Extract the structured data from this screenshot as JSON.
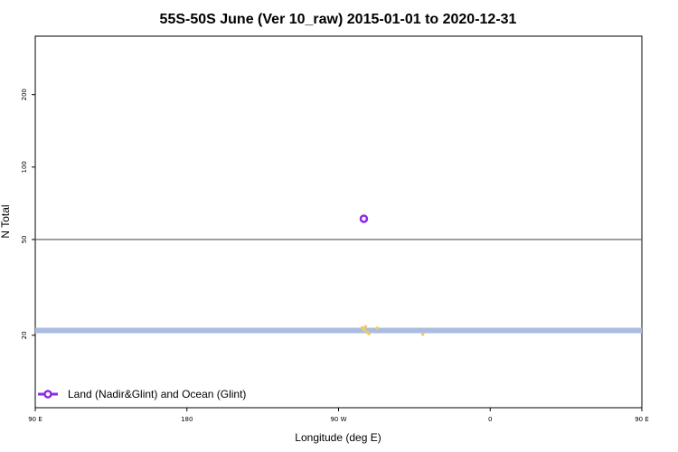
{
  "chart_data": {
    "type": "scatter",
    "title": "55S-50S June (Ver 10_raw)   2015-01-01 to 2020-12-31",
    "xlabel": "Longitude (deg E)",
    "ylabel": "N Total",
    "y_scale": "log",
    "xlim": [
      90,
      450
    ],
    "ylim": [
      10,
      350
    ],
    "x_ticks": [
      {
        "value": 90,
        "label": "90 E"
      },
      {
        "value": 180,
        "label": "180"
      },
      {
        "value": 270,
        "label": "90 W"
      },
      {
        "value": 360,
        "label": "0"
      },
      {
        "value": 450,
        "label": "90 E"
      },
      {
        "value": 540,
        "label": "180"
      }
    ],
    "y_ticks": [
      {
        "value": 20,
        "label": "20"
      },
      {
        "value": 50,
        "label": "50"
      },
      {
        "value": 100,
        "label": "100"
      },
      {
        "value": 200,
        "label": "200"
      }
    ],
    "reference_line": {
      "y": 50,
      "color": "#555555"
    },
    "band": {
      "ymin": 20.4,
      "ymax": 21.5,
      "color": "#a9bde0"
    },
    "series": [
      {
        "name": "Land (Nadir&Glint) and Ocean (Glint)",
        "color": "#8e2be2",
        "marker": "circle-open",
        "points": [
          {
            "x": 285,
            "y": 61
          }
        ]
      }
    ],
    "background_points": {
      "color": "#f0c86a",
      "points": [
        {
          "x": 284,
          "y": 21.5
        },
        {
          "x": 285,
          "y": 21.3
        },
        {
          "x": 286,
          "y": 21.7
        },
        {
          "x": 285.5,
          "y": 21.0
        },
        {
          "x": 287,
          "y": 20.6
        },
        {
          "x": 288,
          "y": 20.3
        },
        {
          "x": 293,
          "y": 21.4
        },
        {
          "x": 320,
          "y": 20.2
        }
      ]
    },
    "legend_position": "bottom-left"
  }
}
